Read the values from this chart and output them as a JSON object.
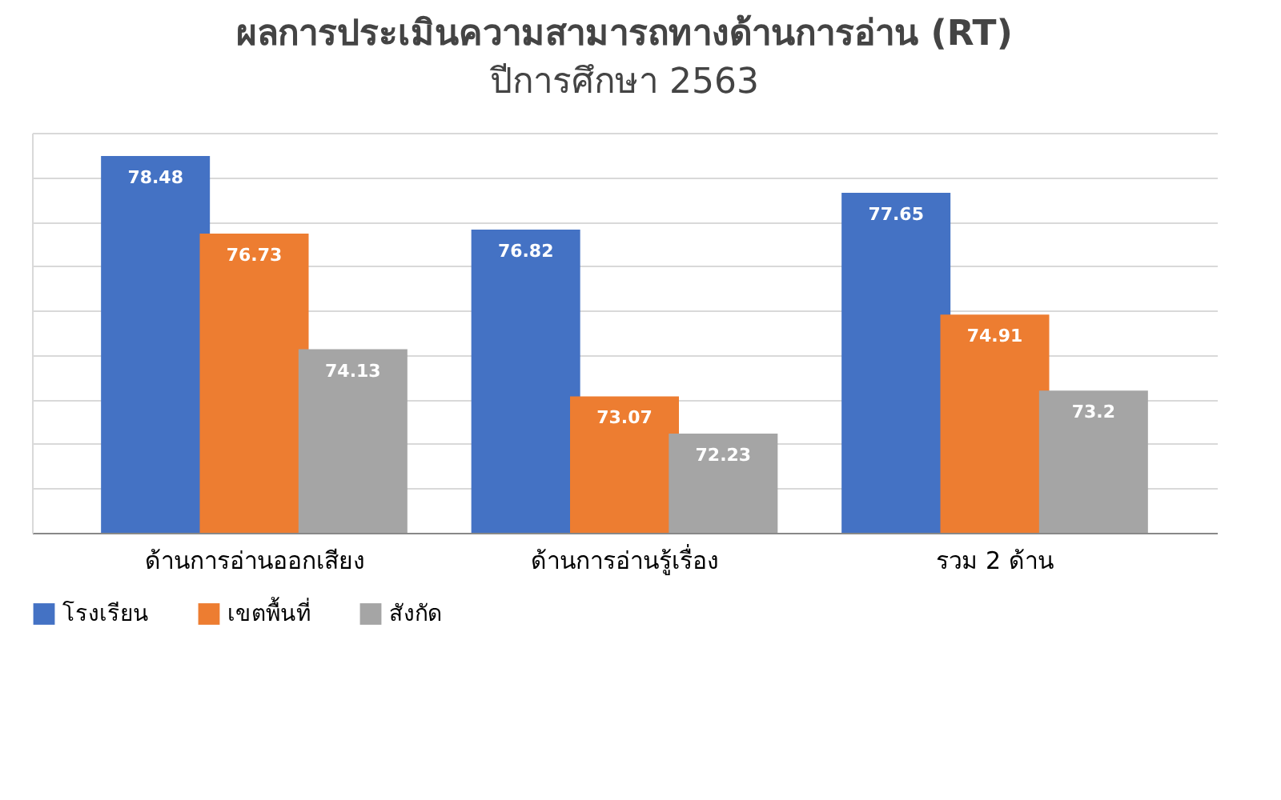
{
  "chart_data": {
    "type": "bar",
    "title": "ผลการประเมินความสามารถทางด้านการอ่าน (RT)",
    "subtitle": "ปีการศึกษา 2563",
    "categories": [
      "ด้านการอ่านออกเสียง",
      "ด้านการอ่านรู้เรื่อง",
      "รวม 2 ด้าน"
    ],
    "series": [
      {
        "name": "โรงเรียน",
        "color": "#4472c4",
        "values": [
          78.48,
          76.82,
          77.65
        ]
      },
      {
        "name": "เขตพื้นที่",
        "color": "#ed7d31",
        "values": [
          76.73,
          73.07,
          74.91
        ]
      },
      {
        "name": "สังกัด",
        "color": "#a5a5a5",
        "values": [
          74.13,
          72.23,
          73.2
        ]
      }
    ],
    "ylim": [
      70,
      79
    ],
    "tick_labels": "x",
    "grid": "y",
    "legend": "bottom",
    "data_labels": true
  }
}
